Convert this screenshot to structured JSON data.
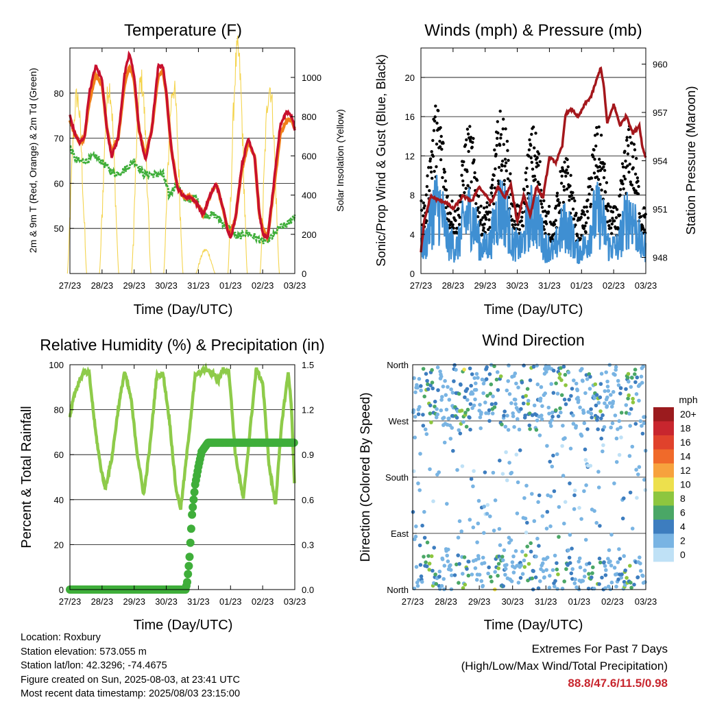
{
  "footer": {
    "location": "Location: Roxbury",
    "elevation": "Station elevation: 573.055 m",
    "latlon": "Station lat/lon: 42.3296; -74.4675",
    "created": "Figure created on Sun, 2025-08-03, at 23:41 UTC",
    "recent": "Most recent data timestamp: 2025/08/03 23:15:00",
    "extremes_title": "Extremes For Past 7 Days",
    "extremes_sub": "(High/Low/Max Wind/Total Precipitation)",
    "extremes_value": "88.8/47.6/11.5/0.98"
  },
  "colors": {
    "temp_2m": "#c8102e",
    "temp_9m": "#f07f1a",
    "dewpoint": "#3fae3a",
    "solar": "#f4d44e",
    "wind_sonic": "#3f8fd2",
    "gust": "#000000",
    "pressure": "#a4171c",
    "rh": "#8ecb4a",
    "rain": "#3fae3a"
  },
  "chart_data": [
    {
      "id": "temperature",
      "type": "line",
      "title": "Temperature (F)",
      "xlabel": "Time (Day/UTC)",
      "ylabel": "2m & 9m T (Red, Orange) & 2m Td (Green)",
      "y2label": "Solar Insolation (Yellow)",
      "xticks": [
        "27/23",
        "28/23",
        "29/23",
        "30/23",
        "31/23",
        "01/23",
        "02/23",
        "03/23"
      ],
      "xlim": [
        0,
        7
      ],
      "ylim": [
        40,
        90
      ],
      "yticks": [
        50,
        60,
        70,
        80
      ],
      "y2lim": [
        0,
        1150
      ],
      "y2ticks": [
        0,
        200,
        400,
        600,
        800,
        1000
      ],
      "grid": true,
      "series": [
        {
          "key": "t2m",
          "x": [
            0,
            0.15,
            0.3,
            0.45,
            0.6,
            0.8,
            1.0,
            1.15,
            1.3,
            1.5,
            1.7,
            1.85,
            2.0,
            2.15,
            2.35,
            2.55,
            2.75,
            2.9,
            3.0,
            3.15,
            3.35,
            3.55,
            3.75,
            3.9,
            4.0,
            4.15,
            4.35,
            4.55,
            4.75,
            4.9,
            5.0,
            5.15,
            5.35,
            5.55,
            5.75,
            5.9,
            6.0,
            6.15,
            6.35,
            6.55,
            6.75,
            6.9,
            7.0
          ],
          "y": [
            75,
            71,
            69,
            70,
            80,
            86,
            83,
            72,
            66,
            70,
            84,
            88.8,
            84,
            72,
            65,
            72,
            86,
            86,
            80,
            68,
            59,
            57,
            57,
            56,
            55,
            53,
            57,
            60,
            55,
            50,
            48,
            52,
            64,
            70,
            66,
            53,
            49,
            47.6,
            60,
            73,
            76,
            75,
            72
          ]
        },
        {
          "key": "t9m",
          "x": [
            0,
            0.15,
            0.3,
            0.45,
            0.6,
            0.8,
            1.0,
            1.15,
            1.3,
            1.5,
            1.7,
            1.85,
            2.0,
            2.15,
            2.35,
            2.55,
            2.75,
            2.9,
            3.0,
            3.15,
            3.35,
            3.55,
            3.75,
            3.9,
            4.0,
            4.15,
            4.35,
            4.55,
            4.75,
            4.9,
            5.0,
            5.15,
            5.35,
            5.55,
            5.75,
            5.9,
            6.0,
            6.15,
            6.35,
            6.55,
            6.75,
            6.9,
            7.0
          ],
          "y": [
            74,
            71,
            69,
            70,
            78,
            84,
            82,
            72,
            67,
            70,
            82,
            86,
            83,
            72,
            66,
            72,
            84,
            85,
            80,
            68,
            59,
            57,
            57,
            56,
            55,
            53,
            57,
            60,
            55,
            50,
            49,
            52,
            63,
            69,
            66,
            53,
            50,
            48,
            59,
            71,
            74,
            74,
            72
          ]
        },
        {
          "key": "td",
          "x": [
            0,
            0.2,
            0.5,
            0.8,
            1.1,
            1.4,
            1.7,
            2.0,
            2.3,
            2.6,
            2.9,
            3.1,
            3.3,
            3.6,
            3.9,
            4.2,
            4.5,
            4.8,
            5.0,
            5.2,
            5.5,
            5.8,
            6.0,
            6.3,
            6.5,
            6.8,
            7.0
          ],
          "y": [
            68,
            65,
            65,
            66,
            64,
            62,
            63,
            65,
            62,
            62,
            62,
            57,
            60,
            56,
            57,
            53,
            53,
            51,
            50,
            48,
            49,
            48,
            47,
            48,
            50,
            51,
            53
          ]
        },
        {
          "key": "solar",
          "axis": "y2",
          "days": [
            0.22,
            1.22,
            2.22,
            3.22,
            4.22,
            5.22,
            6.22
          ],
          "peak": [
            900,
            950,
            980,
            950,
            120,
            1130,
            950
          ]
        }
      ]
    },
    {
      "id": "winds",
      "type": "line",
      "title": "Winds (mph) & Pressure (mb)",
      "xlabel": "Time (Day/UTC)",
      "ylabel": "Sonic/Prop Wind & Gust (Blue, Black)",
      "y2label": "Station Pressure (Maroon)",
      "xticks": [
        "27/23",
        "28/23",
        "29/23",
        "30/23",
        "31/23",
        "01/23",
        "02/23",
        "03/23"
      ],
      "xlim": [
        0,
        7
      ],
      "ylim": [
        0,
        23
      ],
      "yticks": [
        0,
        4,
        8,
        12,
        16,
        20
      ],
      "y2lim": [
        947,
        961
      ],
      "y2ticks": [
        948,
        951,
        954,
        957,
        960
      ],
      "grid": true,
      "daily_max_wind": [
        11.5,
        10,
        11,
        10,
        8,
        10,
        10
      ],
      "pressure": {
        "x": [
          0,
          0.1,
          0.3,
          0.5,
          0.8,
          1.0,
          1.3,
          1.6,
          1.8,
          2.0,
          2.2,
          2.4,
          2.6,
          2.8,
          3.0,
          3.2,
          3.4,
          3.6,
          3.8,
          4.0,
          4.2,
          4.4,
          4.5,
          4.7,
          4.9,
          5.1,
          5.3,
          5.5,
          5.6,
          5.7,
          5.8,
          6.0,
          6.2,
          6.4,
          6.6,
          6.8,
          6.9,
          7.0
        ],
        "y": [
          948.3,
          950.2,
          951.8,
          951.6,
          951.4,
          951.0,
          951.8,
          951.5,
          952.4,
          951.9,
          951.4,
          952.4,
          951.7,
          952.5,
          950.2,
          951.9,
          950.6,
          952.4,
          951.7,
          954.2,
          953.9,
          954.9,
          956.9,
          957.2,
          956.7,
          957.5,
          958.0,
          959.2,
          959.8,
          958.5,
          956.3,
          957.5,
          956.2,
          956.8,
          955.7,
          956.2,
          954.8,
          954.2
        ]
      }
    },
    {
      "id": "humidity",
      "type": "line",
      "title": "Relative Humidity (%) & Precipitation (in)",
      "xlabel": "Time (Day/UTC)",
      "ylabel": "Percent & Total Rainfall",
      "xticks": [
        "27/23",
        "28/23",
        "29/23",
        "30/23",
        "31/23",
        "01/23",
        "02/23",
        "03/23"
      ],
      "xlim": [
        0,
        7
      ],
      "ylim": [
        0,
        100
      ],
      "yticks": [
        0,
        20,
        40,
        60,
        80,
        100
      ],
      "y2lim": [
        0,
        1.5
      ],
      "y2ticks": [
        "0.0",
        "0.3",
        "0.6",
        "0.9",
        "1.2",
        "1.5"
      ],
      "grid": true,
      "series": [
        {
          "key": "rh",
          "x": [
            0,
            0.1,
            0.3,
            0.45,
            0.6,
            0.8,
            0.95,
            1.1,
            1.3,
            1.5,
            1.7,
            1.9,
            2.1,
            2.3,
            2.5,
            2.7,
            2.9,
            3.1,
            3.3,
            3.45,
            3.6,
            3.9,
            4.2,
            4.5,
            4.6,
            4.75,
            4.95,
            5.15,
            5.4,
            5.6,
            5.8,
            6.0,
            6.2,
            6.4,
            6.6,
            6.8,
            6.9,
            7.0
          ],
          "y": [
            77,
            85,
            93,
            97,
            96,
            70,
            55,
            45,
            58,
            80,
            97,
            85,
            60,
            42,
            65,
            95,
            96,
            75,
            45,
            36,
            55,
            95,
            98,
            96,
            92,
            98,
            97,
            60,
            40,
            70,
            98,
            92,
            55,
            38,
            75,
            97,
            80,
            44
          ]
        },
        {
          "key": "rain",
          "x": [
            0,
            3.6,
            3.65,
            3.72,
            3.8,
            3.9,
            4.0,
            4.1,
            4.3,
            7.0
          ],
          "y": [
            0,
            0,
            0.05,
            0.2,
            0.5,
            0.7,
            0.82,
            0.92,
            0.98,
            0.98
          ]
        }
      ]
    },
    {
      "id": "wind_direction",
      "type": "scatter",
      "title": "Wind Direction",
      "xlabel": "Time (Day/UTC)",
      "ylabel": "Direction (Colored By Speed)",
      "xticks": [
        "27/23",
        "28/23",
        "29/23",
        "30/23",
        "31/23",
        "01/23",
        "02/23",
        "03/23"
      ],
      "xlim": [
        0,
        7
      ],
      "yticks": [
        "North",
        "East",
        "South",
        "West",
        "North"
      ],
      "ylim": [
        0,
        360
      ],
      "grid": true,
      "legend": {
        "title": "mph",
        "labels": [
          "20+",
          "18",
          "16",
          "14",
          "12",
          "10",
          "8",
          "6",
          "4",
          "2",
          "0"
        ],
        "colors": [
          "#9b1b1e",
          "#c8262e",
          "#e0422c",
          "#f06a2a",
          "#f7a23d",
          "#ede04d",
          "#8dc63f",
          "#4aa766",
          "#3d7dbf",
          "#79b4e3",
          "#bfe1f6"
        ],
        "placement": "right"
      }
    }
  ]
}
